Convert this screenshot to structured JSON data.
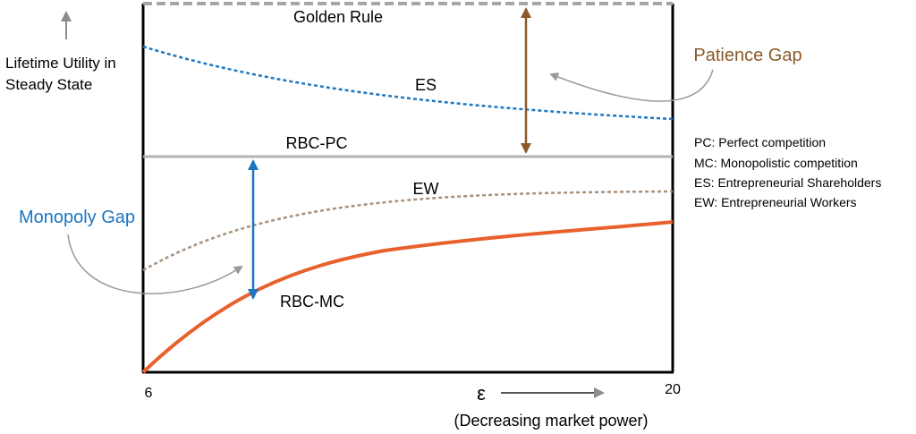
{
  "y_axis_label": [
    "Lifetime Utility in",
    "Steady State"
  ],
  "x_axis": {
    "min_label": "6",
    "max_label": "20",
    "symbol": "ε",
    "note": "(Decreasing market power)"
  },
  "curves": {
    "golden_rule": "Golden Rule",
    "es": "ES",
    "rbc_pc": "RBC-PC",
    "ew": "EW",
    "rbc_mc": "RBC-MC"
  },
  "gaps": {
    "patience": "Patience Gap",
    "monopoly": "Monopoly Gap"
  },
  "legend": [
    "PC: Perfect competition",
    "MC: Monopolistic competition",
    "ES: Entrepreneurial Shareholders",
    "EW: Entrepreneurial Workers"
  ],
  "colors": {
    "golden_rule": "#a6a6a6",
    "es": "#1f78c1",
    "rbc_pc": "#b3b3b3",
    "ew": "#a8917e",
    "rbc_mc": "#e8602c",
    "patience_gap": "#8b5a2b",
    "monopoly_gap": "#1a75c2",
    "pointer": "#9a9a9a",
    "axis": "#000000"
  }
}
